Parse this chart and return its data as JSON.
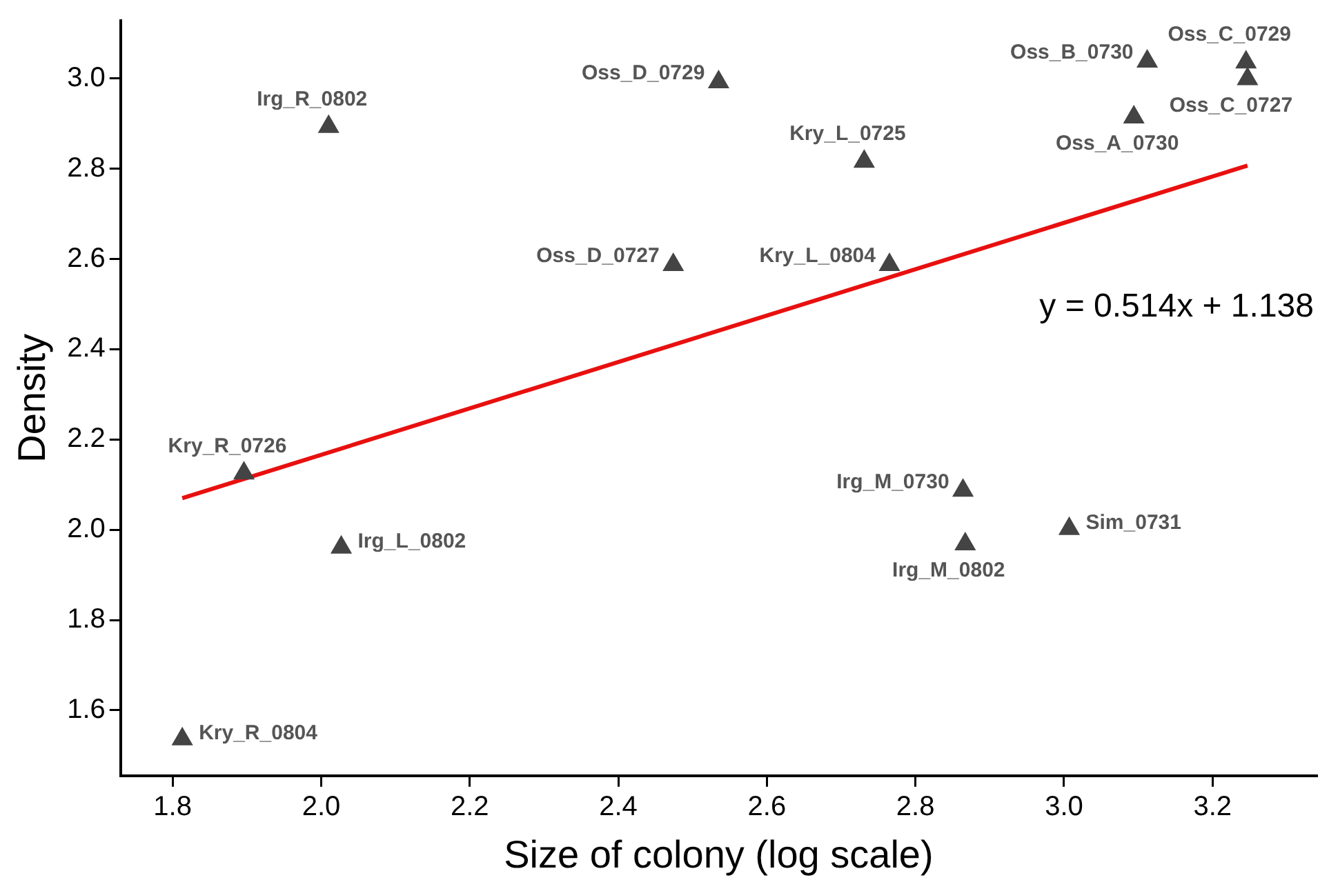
{
  "chart_data": {
    "type": "scatter",
    "xlabel": "Size of colony (log scale)",
    "ylabel": "Density",
    "xlim": [
      1.73,
      3.34
    ],
    "xticks": [
      {
        "value": 1.8,
        "label": "1.8"
      },
      {
        "value": 2,
        "label": "2.0"
      },
      {
        "value": 2.2,
        "label": "2.2"
      },
      {
        "value": 2.4,
        "label": "2.4"
      },
      {
        "value": 2.6,
        "label": "2.6"
      },
      {
        "value": 2.8,
        "label": "2.8"
      },
      {
        "value": 3,
        "label": "3.0"
      },
      {
        "value": 3.2,
        "label": "3.2"
      }
    ],
    "ylim": [
      1.455,
      3.128
    ],
    "yticks": [
      {
        "value": 1.6,
        "label": "1.6"
      },
      {
        "value": 1.8,
        "label": "1.8"
      },
      {
        "value": 2,
        "label": "2.0"
      },
      {
        "value": 2.2,
        "label": "2.2"
      },
      {
        "value": 2.4,
        "label": "2.4"
      },
      {
        "value": 2.6,
        "label": "2.6"
      },
      {
        "value": 2.8,
        "label": "2.8"
      },
      {
        "value": 3,
        "label": "3.0"
      }
    ],
    "grid": false,
    "legend": false,
    "series": [
      {
        "color": "#444444",
        "marker": "triangle",
        "x": [
          2.01,
          1.896,
          2.027,
          1.813,
          2.474,
          2.535,
          2.731,
          2.765,
          3.112,
          3.245,
          3.247,
          3.094,
          2.864,
          2.867,
          3.007
        ],
        "values": [
          2.893,
          2.125,
          1.961,
          1.536,
          2.587,
          2.992,
          2.816,
          2.587,
          3.038,
          3.036,
          2.999,
          2.914,
          2.087,
          1.968,
          2.002
        ]
      },
      {
        "type": "line",
        "color": "#e8100f",
        "marker": "none",
        "line_style": "solid",
        "x": [
          1.813,
          3.247
        ],
        "values": [
          2.07,
          2.807
        ]
      }
    ],
    "annotations": [
      {
        "text": "Irg_R_0802",
        "x": 2.01,
        "y": 2.893
      },
      {
        "text": "Kry_R_0726",
        "x": 1.896,
        "y": 2.125
      },
      {
        "text": "Irg_L_0802",
        "x": 2.027,
        "y": 1.961
      },
      {
        "text": "Kry_R_0804",
        "x": 1.813,
        "y": 1.536
      },
      {
        "text": "Oss_D_0727",
        "x": 2.474,
        "y": 2.587
      },
      {
        "text": "Oss_D_0729",
        "x": 2.535,
        "y": 2.992
      },
      {
        "text": "Kry_L_0725",
        "x": 2.731,
        "y": 2.816
      },
      {
        "text": "Kry_L_0804",
        "x": 2.765,
        "y": 2.587
      },
      {
        "text": "Oss_B_0730",
        "x": 3.112,
        "y": 3.038
      },
      {
        "text": "Oss_C_0729",
        "x": 3.245,
        "y": 3.036
      },
      {
        "text": "Oss_C_0727",
        "x": 3.247,
        "y": 2.999
      },
      {
        "text": "Oss_A_0730",
        "x": 3.094,
        "y": 2.914
      },
      {
        "text": "Irg_M_0730",
        "x": 2.864,
        "y": 2.087
      },
      {
        "text": "Irg_M_0802",
        "x": 2.867,
        "y": 1.968
      },
      {
        "text": "Sim_0731",
        "x": 3.007,
        "y": 2.002
      },
      "y = 0.514x + 1.138"
    ]
  }
}
